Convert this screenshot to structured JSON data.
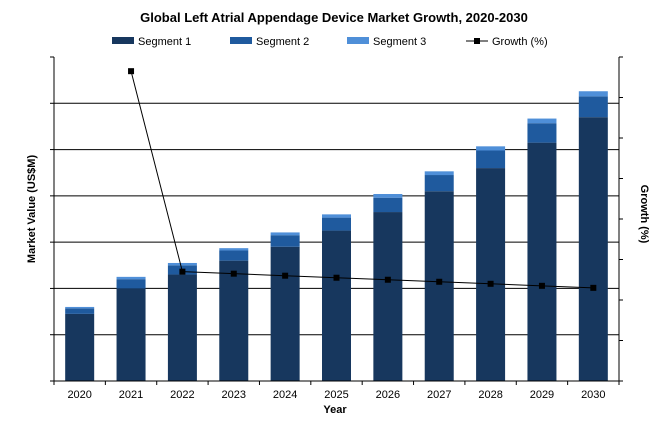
{
  "chart_data": {
    "type": "bar",
    "stacked": true,
    "title": "Global Left Atrial Appendage Device Market Growth, 2020-2030",
    "xlabel": "Year",
    "ylabel": "Market Value (US$M)",
    "y2label": "Growth (%)",
    "categories": [
      "2020",
      "2021",
      "2022",
      "2023",
      "2024",
      "2025",
      "2026",
      "2027",
      "2028",
      "2029",
      "2030"
    ],
    "series": [
      {
        "name": "Segment 1",
        "color": "#17375e",
        "values": [
          1.45,
          2.0,
          2.3,
          2.6,
          2.9,
          3.25,
          3.65,
          4.1,
          4.6,
          5.15,
          5.7
        ]
      },
      {
        "name": "Segment 2",
        "color": "#1f5a9e",
        "values": [
          0.12,
          0.2,
          0.2,
          0.22,
          0.25,
          0.28,
          0.31,
          0.35,
          0.38,
          0.42,
          0.45
        ]
      },
      {
        "name": "Segment 3",
        "color": "#4f8fd8",
        "values": [
          0.03,
          0.05,
          0.05,
          0.05,
          0.06,
          0.07,
          0.08,
          0.08,
          0.09,
          0.1,
          0.11
        ]
      }
    ],
    "line_series": {
      "name": "Growth (%)",
      "color": "#000000",
      "axis": "right",
      "values": [
        null,
        15.3,
        5.4,
        5.3,
        5.2,
        5.1,
        5.0,
        4.9,
        4.8,
        4.7,
        4.6
      ]
    },
    "ylim": [
      0,
      7
    ],
    "y2lim": [
      0,
      16
    ],
    "grid": true,
    "legend_position": "top"
  }
}
